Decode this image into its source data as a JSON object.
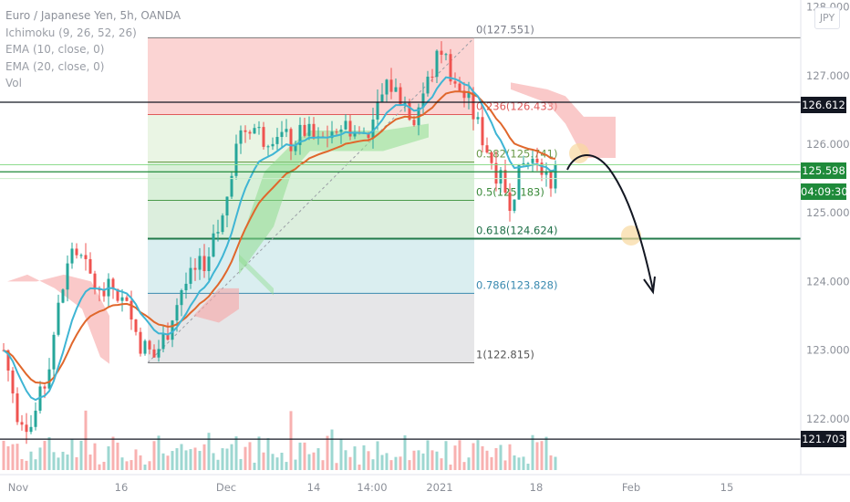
{
  "legend": {
    "symbol": "Euro / Japanese Yen, 5h, OANDA",
    "ichimoku": "Ichimoku (9, 26, 52, 26)",
    "ema10": "EMA (10, close, 0)",
    "ema20": "EMA (20, close, 0)",
    "vol": "Vol"
  },
  "currency_button": "JPY",
  "price_tags": {
    "upper": "126.612",
    "current": "125.598",
    "countdown": "04:09:30",
    "lower": "121.703"
  },
  "colors": {
    "up": "#26a69a",
    "down": "#ef5350",
    "ema10": "#3fb5d4",
    "ema20": "#e0672c",
    "cloud_bull": "#8fdc8f",
    "cloud_bear": "#f7a5a5",
    "current_tag": "#1f8a3a",
    "black_tag": "#131722"
  },
  "chart_data": {
    "type": "candlestick",
    "title": "Euro / Japanese Yen, 5h, OANDA",
    "ylim": [
      121.3,
      128.0
    ],
    "y_ticks": [
      "128.000",
      "127.000",
      "126.000",
      "125.000",
      "124.000",
      "123.000",
      "122.000"
    ],
    "x_ticks": [
      "Nov",
      "16",
      "Dec",
      "14",
      "14:00",
      "2021",
      "18",
      "Feb",
      "15"
    ],
    "horizontal_lines": [
      126.612,
      121.703,
      125.598
    ],
    "fib_retracement": {
      "levels": [
        {
          "ratio": "0",
          "price": 127.551,
          "label": "0(127.551)"
        },
        {
          "ratio": "0.236",
          "price": 126.433,
          "label": "0.236(126.433)"
        },
        {
          "ratio": "0.382",
          "price": 125.741,
          "label": "0.382(125.741)"
        },
        {
          "ratio": "0.5",
          "price": 125.183,
          "label": "0.5(125.183)"
        },
        {
          "ratio": "0.618",
          "price": 124.624,
          "label": "0.618(124.624)"
        },
        {
          "ratio": "0.786",
          "price": 123.828,
          "label": "0.786(123.828)"
        },
        {
          "ratio": "1",
          "price": 122.815,
          "label": "1(122.815)"
        }
      ]
    },
    "price_path": [
      {
        "t": 0,
        "p": 123.0
      },
      {
        "t": 3,
        "p": 122.1
      },
      {
        "t": 6,
        "p": 121.9
      },
      {
        "t": 9,
        "p": 122.5
      },
      {
        "t": 12,
        "p": 123.6
      },
      {
        "t": 15,
        "p": 124.5
      },
      {
        "t": 18,
        "p": 124.2
      },
      {
        "t": 21,
        "p": 123.8
      },
      {
        "t": 24,
        "p": 123.9
      },
      {
        "t": 27,
        "p": 123.6
      },
      {
        "t": 30,
        "p": 123.1
      },
      {
        "t": 33,
        "p": 122.9
      },
      {
        "t": 36,
        "p": 123.3
      },
      {
        "t": 39,
        "p": 123.9
      },
      {
        "t": 42,
        "p": 124.1
      },
      {
        "t": 45,
        "p": 124.4
      },
      {
        "t": 48,
        "p": 124.9
      },
      {
        "t": 51,
        "p": 126.1
      },
      {
        "t": 54,
        "p": 126.3
      },
      {
        "t": 57,
        "p": 126.1
      },
      {
        "t": 60,
        "p": 126.2
      },
      {
        "t": 63,
        "p": 126.0
      },
      {
        "t": 66,
        "p": 126.2
      },
      {
        "t": 69,
        "p": 126.0
      },
      {
        "t": 72,
        "p": 126.2
      },
      {
        "t": 75,
        "p": 126.3
      },
      {
        "t": 78,
        "p": 126.1
      },
      {
        "t": 81,
        "p": 126.3
      },
      {
        "t": 84,
        "p": 126.9
      },
      {
        "t": 87,
        "p": 126.7
      },
      {
        "t": 90,
        "p": 126.4
      },
      {
        "t": 93,
        "p": 126.9
      },
      {
        "t": 96,
        "p": 127.4
      },
      {
        "t": 99,
        "p": 126.9
      },
      {
        "t": 102,
        "p": 126.6
      },
      {
        "t": 105,
        "p": 126.1
      },
      {
        "t": 108,
        "p": 125.6
      },
      {
        "t": 111,
        "p": 125.2
      },
      {
        "t": 114,
        "p": 125.7
      },
      {
        "t": 117,
        "p": 125.8
      },
      {
        "t": 120,
        "p": 125.45
      },
      {
        "t": 121,
        "p": 125.6
      }
    ],
    "projection_arrow": {
      "from": 125.6,
      "to": 123.9
    }
  }
}
